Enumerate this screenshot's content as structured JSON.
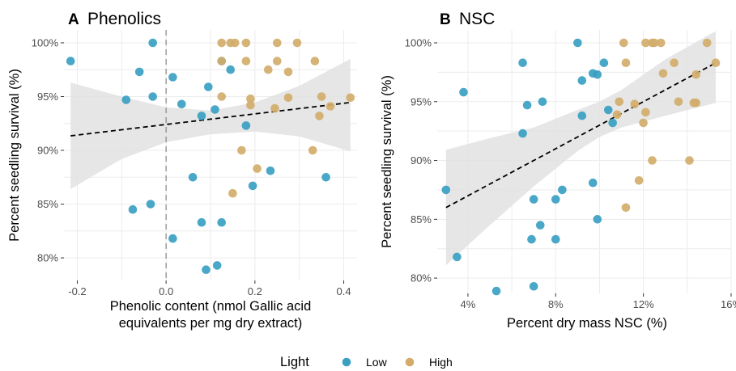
{
  "colors": {
    "low": "#3a9fc2",
    "high": "#d3ac6a",
    "ci_band": "#e2e2e2",
    "panel_bg": "#ffffff",
    "grid": "#ececec",
    "fit_line": "#000000",
    "axis_text": "#4d4d4d",
    "vline": "#8c8c8c"
  },
  "legend": {
    "title": "Light",
    "items": [
      {
        "key": "low",
        "label": "Low"
      },
      {
        "key": "high",
        "label": "High"
      }
    ],
    "position": "bottom"
  },
  "chart_data": [
    {
      "panel_label": "A",
      "title": "Phenolics",
      "type": "scatter",
      "xlabel_lines": [
        "Phenolic content (nmol Gallic acid",
        "equivalents per mg dry extract)"
      ],
      "ylabel": "Percent seedling survival (%)",
      "xlim": [
        -0.23,
        0.43
      ],
      "ylim": [
        77.9,
        101.2
      ],
      "xticks": [
        -0.2,
        0.0,
        0.2,
        0.4
      ],
      "xtick_labels": [
        "-0.2",
        "0.0",
        "0.2",
        "0.4"
      ],
      "yticks": [
        80,
        85,
        90,
        95,
        100
      ],
      "ytick_labels": [
        "80%",
        "85%",
        "90%",
        "95%",
        "100%"
      ],
      "grid": true,
      "reference_line_x": 0.0,
      "fit": {
        "type": "linear",
        "x": [
          -0.215,
          0.415
        ],
        "y": [
          91.35,
          94.45
        ]
      },
      "ci_band": {
        "x": [
          -0.215,
          -0.1,
          0.0,
          0.1,
          0.2,
          0.3,
          0.415
        ],
        "lower": [
          86.4,
          89.2,
          90.75,
          91.5,
          91.75,
          91.3,
          89.9
        ],
        "upper": [
          96.3,
          95.0,
          94.0,
          93.7,
          94.45,
          96.0,
          98.5
        ]
      },
      "series": [
        {
          "name": "Low",
          "color_key": "low",
          "points": [
            [
              -0.215,
              98.3
            ],
            [
              -0.09,
              94.7
            ],
            [
              -0.06,
              97.3
            ],
            [
              -0.03,
              100.0
            ],
            [
              -0.03,
              95.0
            ],
            [
              0.015,
              96.8
            ],
            [
              0.035,
              94.3
            ],
            [
              0.08,
              93.2
            ],
            [
              0.095,
              95.9
            ],
            [
              0.11,
              93.8
            ],
            [
              0.125,
              98.3
            ],
            [
              0.145,
              97.5
            ],
            [
              0.18,
              92.3
            ],
            [
              0.235,
              88.1
            ],
            [
              0.195,
              86.7
            ],
            [
              0.06,
              87.5
            ],
            [
              -0.075,
              84.5
            ],
            [
              -0.035,
              85.0
            ],
            [
              0.08,
              83.3
            ],
            [
              0.125,
              83.3
            ],
            [
              0.015,
              81.8
            ],
            [
              0.09,
              78.9
            ],
            [
              0.115,
              79.3
            ],
            [
              0.36,
              87.5
            ]
          ]
        },
        {
          "name": "High",
          "color_key": "high",
          "points": [
            [
              0.125,
              100.0
            ],
            [
              0.145,
              100.0
            ],
            [
              0.155,
              100.0
            ],
            [
              0.18,
              100.0
            ],
            [
              0.25,
              100.0
            ],
            [
              0.295,
              100.0
            ],
            [
              0.125,
              98.3
            ],
            [
              0.18,
              98.3
            ],
            [
              0.25,
              98.3
            ],
            [
              0.335,
              98.3
            ],
            [
              0.23,
              97.5
            ],
            [
              0.275,
              97.3
            ],
            [
              0.125,
              95.0
            ],
            [
              0.19,
              94.8
            ],
            [
              0.275,
              94.9
            ],
            [
              0.35,
              95.0
            ],
            [
              0.415,
              94.9
            ],
            [
              0.19,
              94.2
            ],
            [
              0.245,
              93.9
            ],
            [
              0.37,
              94.1
            ],
            [
              0.345,
              93.2
            ],
            [
              0.17,
              90.0
            ],
            [
              0.33,
              90.0
            ],
            [
              0.205,
              88.3
            ],
            [
              0.15,
              86.0
            ]
          ]
        }
      ]
    },
    {
      "panel_label": "B",
      "title": "NSC",
      "type": "scatter",
      "xlabel_lines": [
        "Percent dry mass NSC (%)"
      ],
      "ylabel": "Percent seedling survival (%)",
      "xlim": [
        2.6,
        16.0
      ],
      "ylim": [
        78.7,
        101.1
      ],
      "xticks": [
        4,
        8,
        12,
        16
      ],
      "xtick_labels": [
        "4%",
        "8%",
        "12%",
        "16%"
      ],
      "yticks": [
        80,
        85,
        90,
        95,
        100
      ],
      "ytick_labels": [
        "80%",
        "85%",
        "90%",
        "95%",
        "100%"
      ],
      "grid": true,
      "fit": {
        "type": "linear",
        "x": [
          3.0,
          15.3
        ],
        "y": [
          86.0,
          98.3
        ]
      },
      "ci_band": {
        "x": [
          3.0,
          5.0,
          7.0,
          9.0,
          10.0,
          11.0,
          13.0,
          15.3
        ],
        "lower": [
          81.1,
          84.5,
          87.8,
          90.8,
          92.0,
          92.8,
          93.8,
          94.9
        ],
        "upper": [
          90.9,
          91.9,
          92.8,
          94.3,
          95.0,
          96.0,
          98.6,
          101.0
        ]
      },
      "series": [
        {
          "name": "Low",
          "color_key": "low",
          "points": [
            [
              3.0,
              87.5
            ],
            [
              3.5,
              81.8
            ],
            [
              3.8,
              95.8
            ],
            [
              5.3,
              78.9
            ],
            [
              6.5,
              98.3
            ],
            [
              6.5,
              92.3
            ],
            [
              6.7,
              94.7
            ],
            [
              6.9,
              83.3
            ],
            [
              7.0,
              79.3
            ],
            [
              7.0,
              86.7
            ],
            [
              7.3,
              84.5
            ],
            [
              7.4,
              95.0
            ],
            [
              8.0,
              86.7
            ],
            [
              8.0,
              83.3
            ],
            [
              8.3,
              87.5
            ],
            [
              9.0,
              100.0
            ],
            [
              9.2,
              96.8
            ],
            [
              9.2,
              93.8
            ],
            [
              9.7,
              97.4
            ],
            [
              9.7,
              88.1
            ],
            [
              9.9,
              97.3
            ],
            [
              9.9,
              85.0
            ],
            [
              10.2,
              98.3
            ],
            [
              10.4,
              94.3
            ],
            [
              10.6,
              93.2
            ]
          ]
        },
        {
          "name": "High",
          "color_key": "high",
          "points": [
            [
              11.1,
              100.0
            ],
            [
              12.1,
              100.0
            ],
            [
              12.4,
              100.0
            ],
            [
              12.5,
              100.0
            ],
            [
              12.8,
              100.0
            ],
            [
              14.9,
              100.0
            ],
            [
              11.2,
              98.3
            ],
            [
              13.4,
              98.3
            ],
            [
              15.3,
              98.3
            ],
            [
              12.9,
              97.4
            ],
            [
              14.4,
              97.3
            ],
            [
              10.9,
              95.0
            ],
            [
              11.6,
              94.8
            ],
            [
              13.6,
              95.0
            ],
            [
              14.3,
              94.9
            ],
            [
              14.4,
              94.9
            ],
            [
              10.8,
              93.9
            ],
            [
              12.1,
              94.1
            ],
            [
              12.0,
              93.2
            ],
            [
              11.8,
              88.3
            ],
            [
              12.4,
              90.0
            ],
            [
              14.1,
              90.0
            ],
            [
              11.2,
              86.0
            ]
          ]
        }
      ]
    }
  ]
}
